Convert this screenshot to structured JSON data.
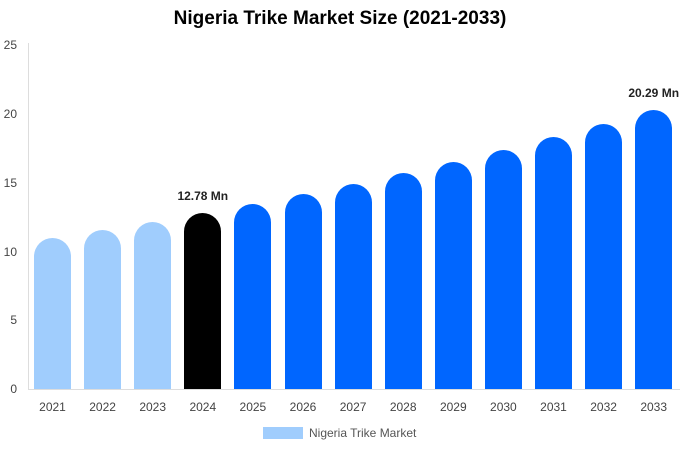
{
  "chart_data": {
    "type": "bar",
    "title": "Nigeria Trike Market Size (2021-2033)",
    "xlabel": "",
    "ylabel": "",
    "ylim": [
      0,
      25
    ],
    "yticks": [
      0,
      5,
      10,
      15,
      20,
      25
    ],
    "categories": [
      "2021",
      "2022",
      "2023",
      "2024",
      "2025",
      "2026",
      "2027",
      "2028",
      "2029",
      "2030",
      "2031",
      "2032",
      "2033"
    ],
    "series": [
      {
        "name": "Nigeria Trike Market",
        "values": [
          10.95,
          11.53,
          12.14,
          12.78,
          13.45,
          14.16,
          14.91,
          15.69,
          16.52,
          17.39,
          18.31,
          19.28,
          20.29
        ]
      }
    ],
    "annotations": [
      {
        "category": "2024",
        "text": "12.78 Mn"
      },
      {
        "category": "2033",
        "text": "20.29 Mn"
      }
    ],
    "grid": false,
    "legend_position": "bottom",
    "colors": {
      "historical": "#a0cdfd",
      "base_year": "#000000",
      "forecast": "#0066ff"
    }
  }
}
